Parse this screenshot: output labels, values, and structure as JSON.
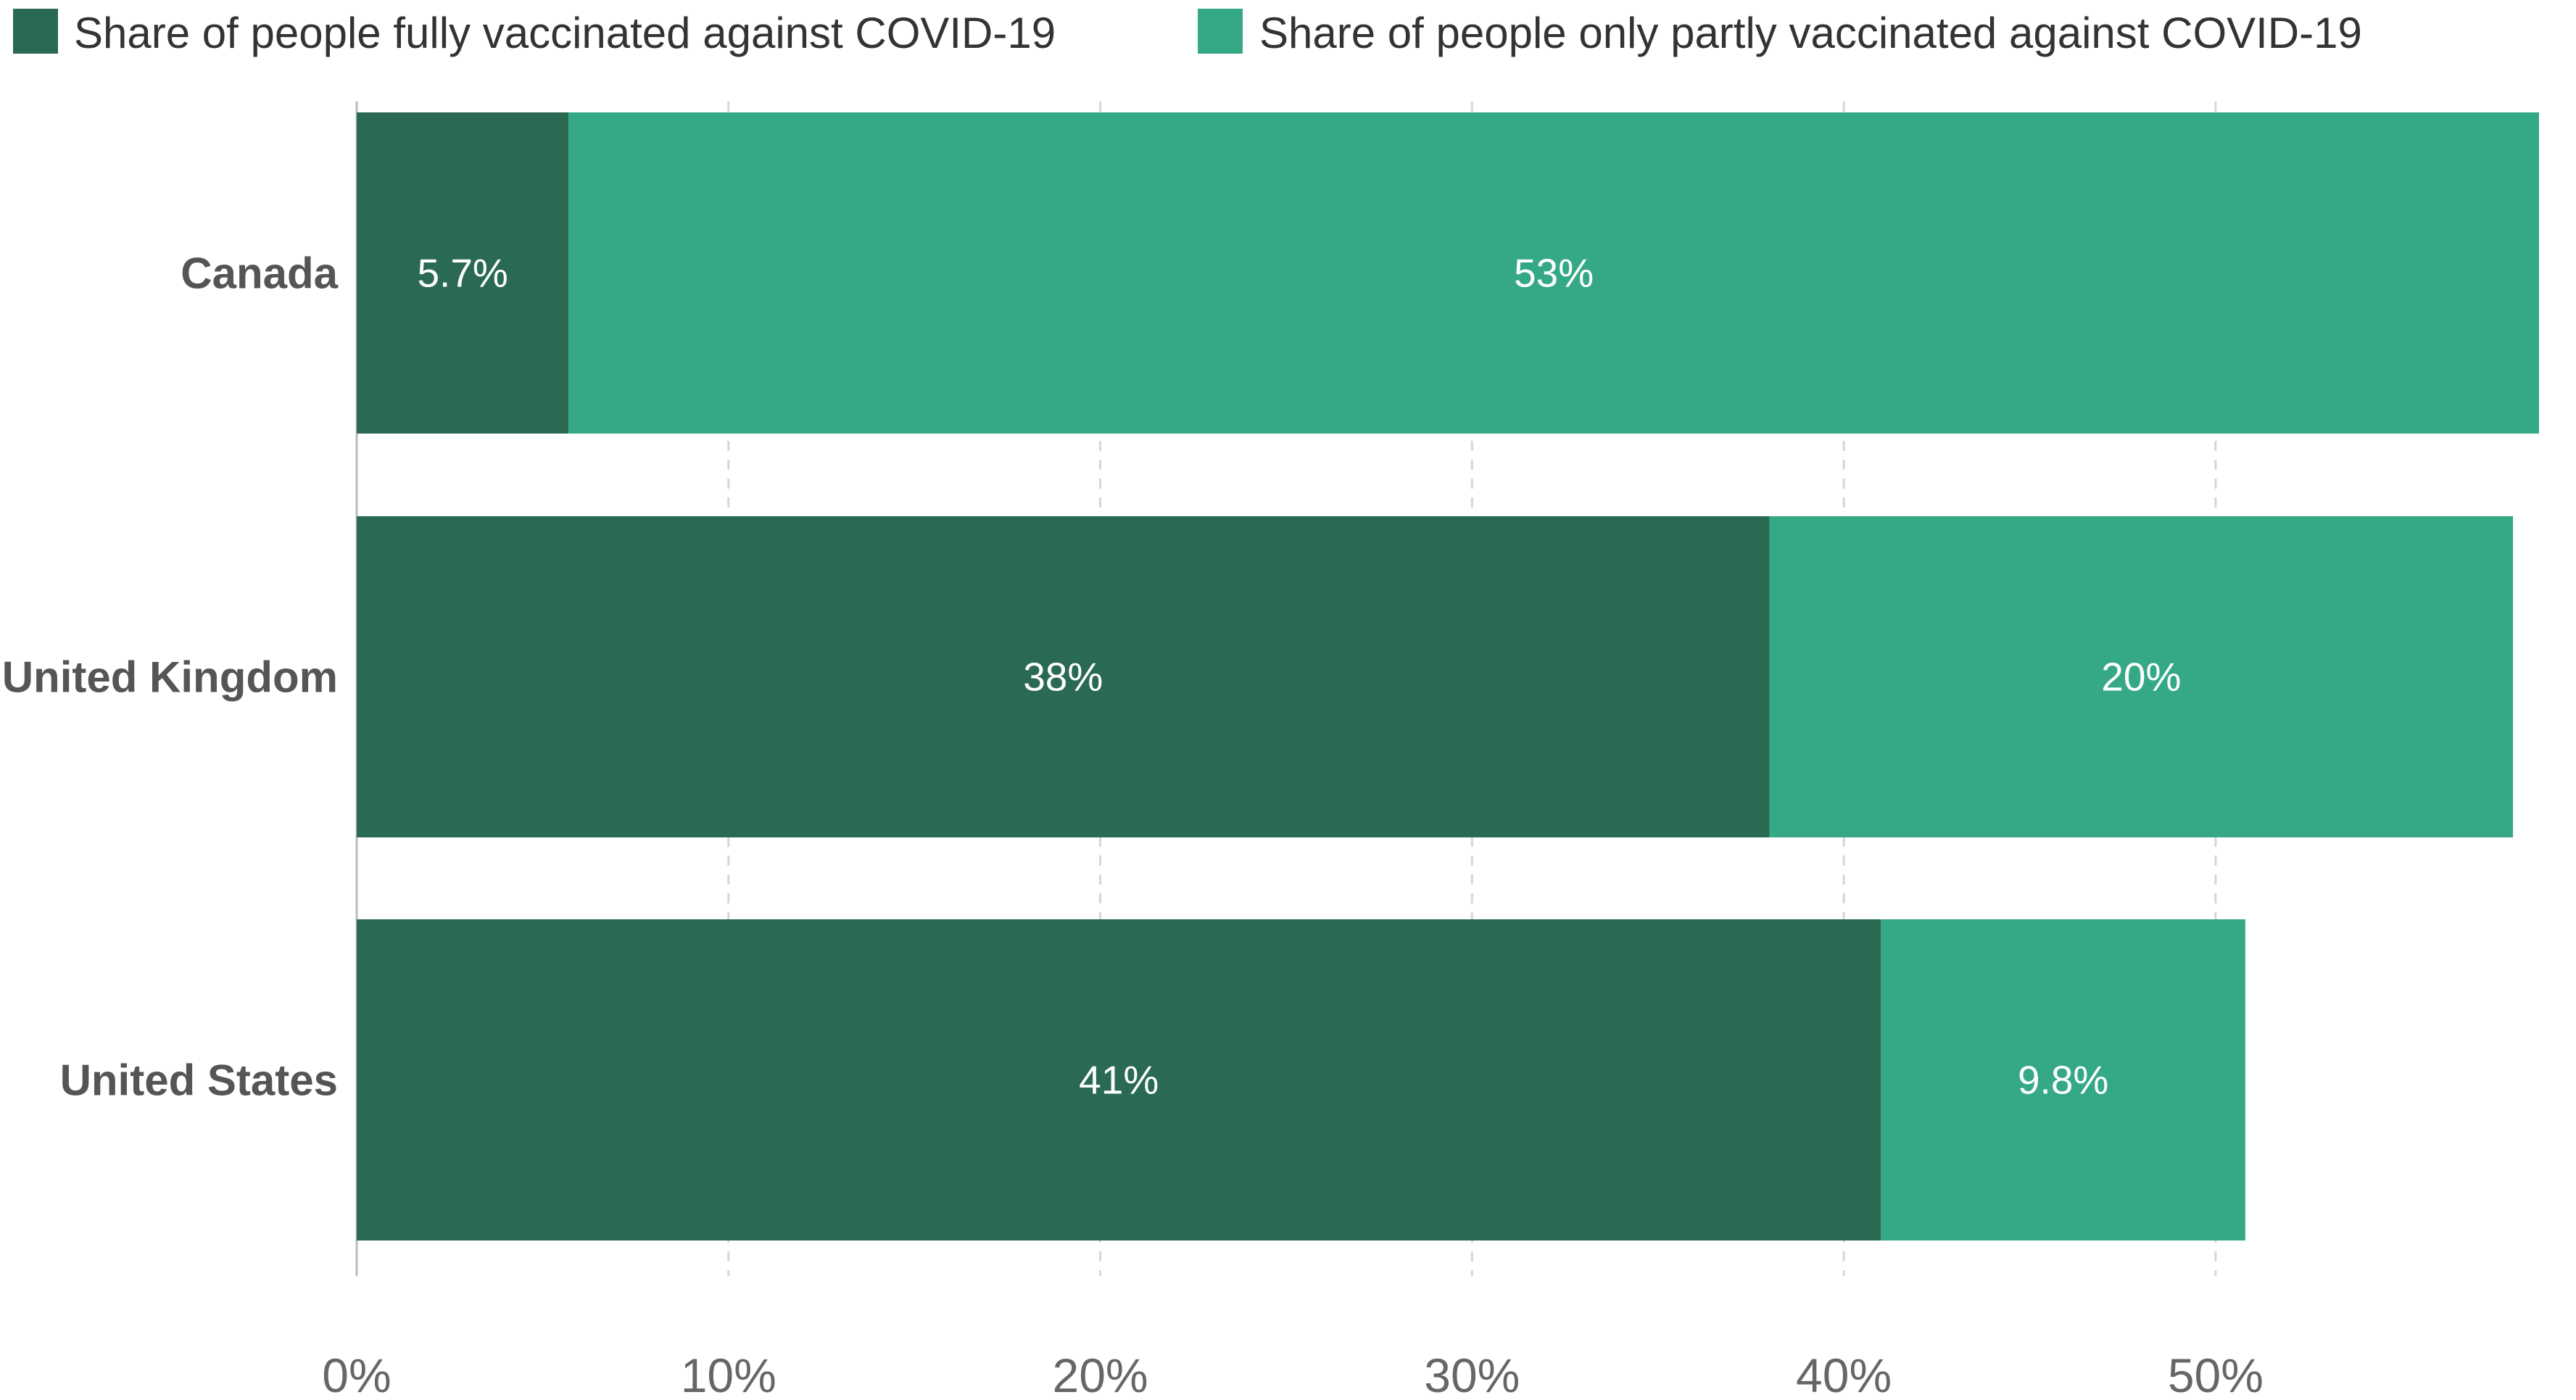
{
  "chart_data": {
    "type": "bar",
    "orientation": "horizontal",
    "stacked": true,
    "title": "",
    "xlabel": "",
    "ylabel": "",
    "categories": [
      "Canada",
      "United Kingdom",
      "United States"
    ],
    "series": [
      {
        "name": "Share of people fully vaccinated against COVID-19",
        "color": "#2a6a52",
        "values": [
          5.7,
          38,
          41
        ],
        "labels": [
          "5.7%",
          "38%",
          "41%"
        ]
      },
      {
        "name": "Share of people only partly vaccinated against COVID-19",
        "color": "#35a985",
        "values": [
          53,
          20,
          9.8
        ],
        "labels": [
          "53%",
          "20%",
          "9.8%"
        ]
      }
    ],
    "xlim": [
      0,
      58.7
    ],
    "xticks": [
      0,
      10,
      20,
      30,
      40,
      50
    ],
    "xtick_labels": [
      "0%",
      "10%",
      "20%",
      "30%",
      "40%",
      "50%"
    ],
    "grid": true,
    "legend_position": "top-left"
  }
}
